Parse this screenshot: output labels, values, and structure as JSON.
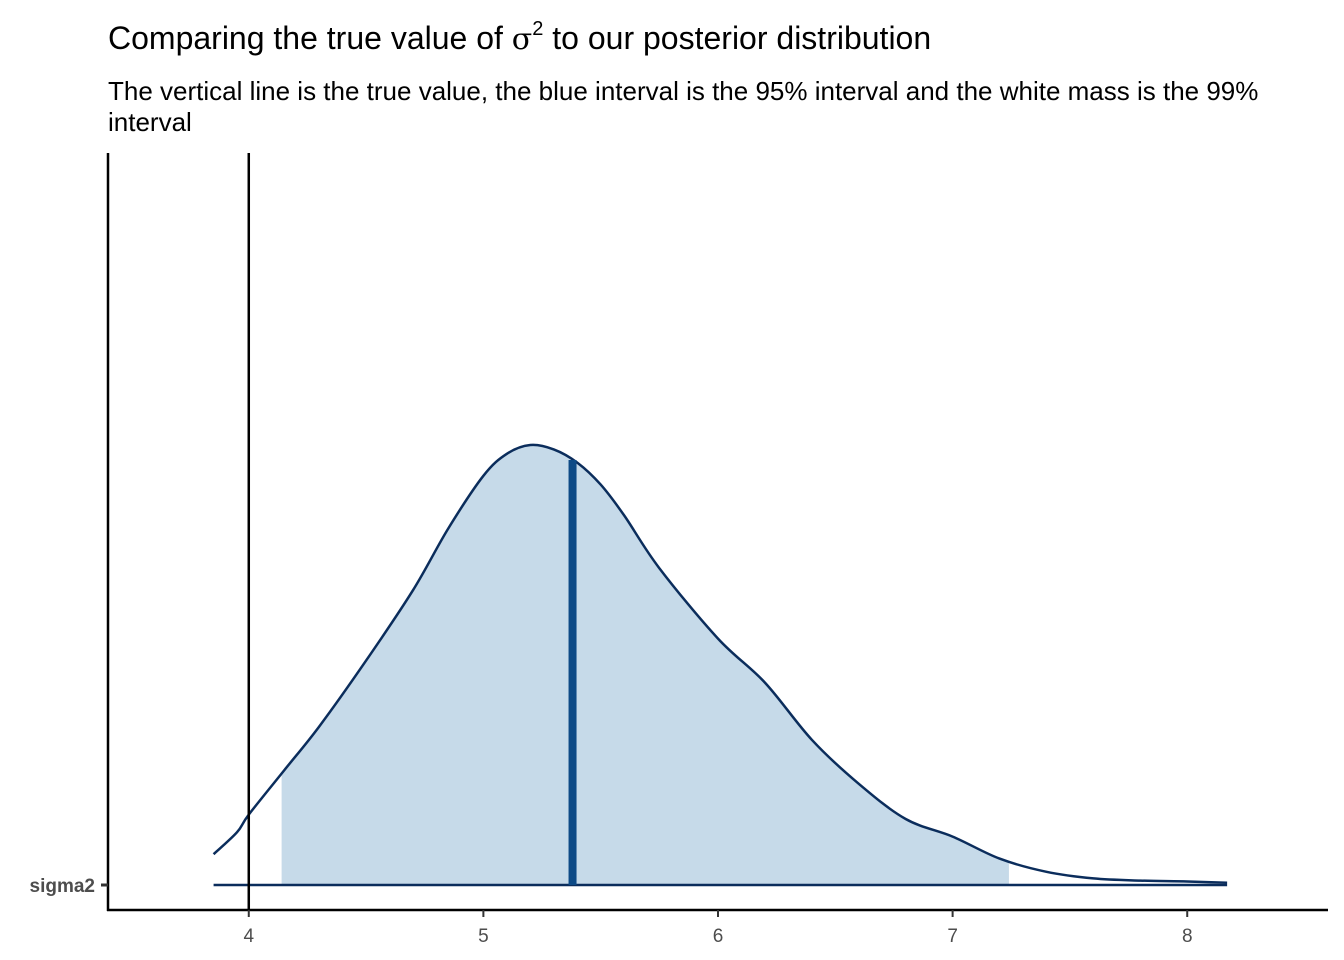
{
  "chart_data": {
    "type": "area",
    "title": {
      "prefix": "Comparing the true value of ",
      "symbol": "σ",
      "superscript": "2",
      "suffix": " to our posterior distribution"
    },
    "subtitle": "The vertical line is the true value, the blue interval is the 95% interval and the white mass is the 99% interval",
    "xlabel": "",
    "ylabel": "",
    "xlim": [
      3.4,
      8.6
    ],
    "x_ticks": [
      4,
      5,
      6,
      7,
      8
    ],
    "categories": [
      "sigma2"
    ],
    "grid": false,
    "density": {
      "x": [
        3.85,
        3.95,
        4.0,
        4.15,
        4.3,
        4.5,
        4.7,
        4.85,
        5.0,
        5.1,
        5.2,
        5.3,
        5.4,
        5.5,
        5.6,
        5.75,
        6.0,
        6.2,
        6.4,
        6.6,
        6.8,
        7.0,
        7.2,
        7.4,
        7.6,
        7.8,
        8.0,
        8.17
      ],
      "y": [
        0.07,
        0.12,
        0.16,
        0.26,
        0.36,
        0.51,
        0.67,
        0.81,
        0.93,
        0.98,
        1.0,
        0.99,
        0.96,
        0.91,
        0.84,
        0.72,
        0.56,
        0.46,
        0.33,
        0.23,
        0.15,
        0.11,
        0.06,
        0.03,
        0.015,
        0.01,
        0.008,
        0.005
      ]
    },
    "true_value": 4.0,
    "median": 5.38,
    "interval_95": [
      4.14,
      7.24
    ],
    "interval_99": [
      3.85,
      8.17
    ],
    "colors": {
      "density_line": "#0b2d5c",
      "interval_fill": "#c6dae9",
      "median_line": "#0d4a86",
      "true_value_line": "#000000",
      "axis": "#000000"
    }
  }
}
